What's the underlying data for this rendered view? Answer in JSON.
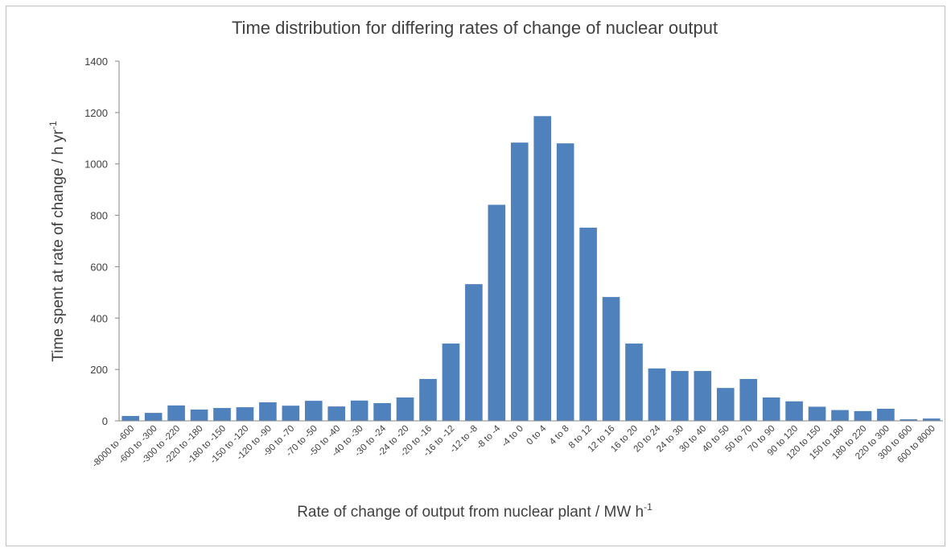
{
  "chart_data": {
    "type": "bar",
    "title": "Time distribution for differing rates of change of nuclear output",
    "x_label": "Rate of change of output from nuclear plant / MW h",
    "x_label_sup": "-1",
    "y_label": "Time spent at rate of change / h yr",
    "y_label_sup": "-1",
    "categories": [
      "-8000 to -600",
      "-600 to -300",
      "-300 to -220",
      "-220 to -180",
      "-180 to -150",
      "-150 to -120",
      "-120 to -90",
      "-90 to -70",
      "-70 to -50",
      "-50 to -40",
      "-40 to -30",
      "-30 to -24",
      "-24 to -20",
      "-20 to -16",
      "-16 to -12",
      "-12 to -8",
      "-8 to -4",
      "-4 to 0",
      "0 to 4",
      "4 to 8",
      "8 to 12",
      "12 to 16",
      "16 to 20",
      "20 to 24",
      "24 to 30",
      "30 to 40",
      "40 to 50",
      "50 to 70",
      "70 to 90",
      "90 to 120",
      "120 to 150",
      "150 to 180",
      "180 to 220",
      "220 to 300",
      "300 to 600",
      "600 to 8000"
    ],
    "values": [
      19,
      31,
      60,
      44,
      50,
      53,
      72,
      59,
      78,
      56,
      79,
      69,
      91,
      163,
      301,
      532,
      841,
      1083,
      1186,
      1080,
      752,
      482,
      301,
      204,
      194,
      194,
      128,
      163,
      91,
      76,
      55,
      42,
      38,
      47,
      6,
      9
    ],
    "color": "#4f81bd",
    "ylim": [
      0,
      1400
    ],
    "yticks": [
      0,
      200,
      400,
      600,
      800,
      1000,
      1200,
      1400
    ],
    "grid": false
  }
}
